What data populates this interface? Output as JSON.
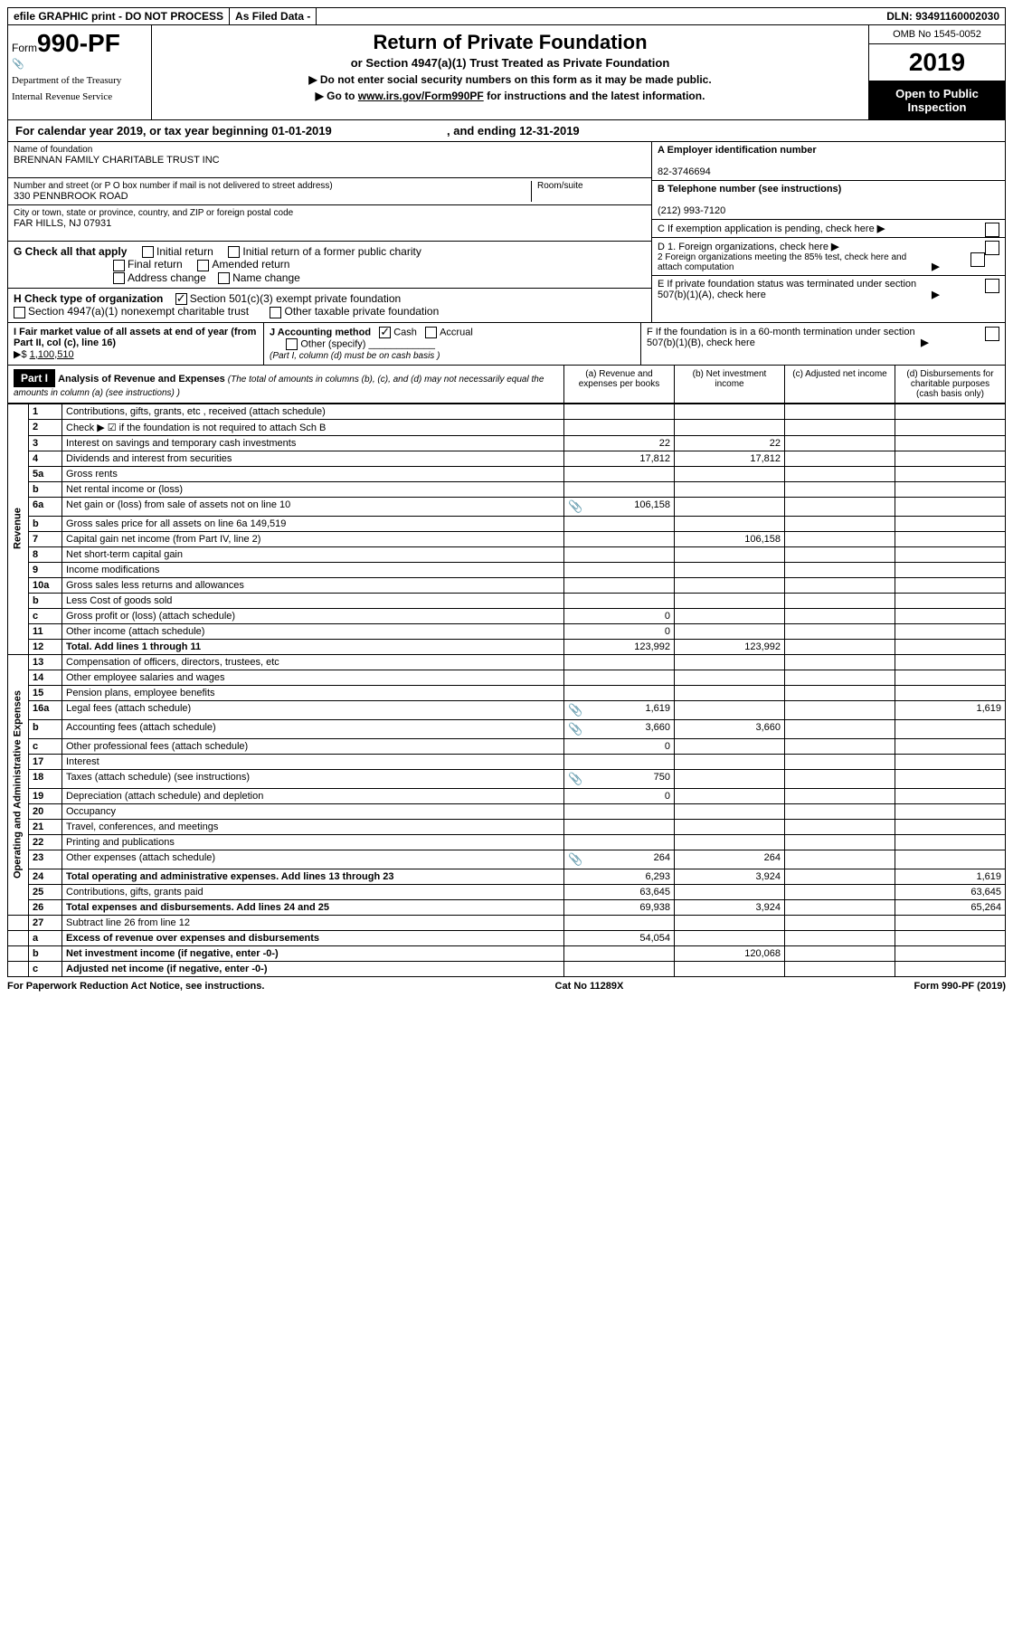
{
  "top": {
    "efile": "efile GRAPHIC print - DO NOT PROCESS",
    "asfiled": "As Filed Data -",
    "dln_label": "DLN:",
    "dln": "93491160002030"
  },
  "header": {
    "form_word": "Form",
    "form_num": "990-PF",
    "dept1": "Department of the Treasury",
    "dept2": "Internal Revenue Service",
    "title1": "Return of Private Foundation",
    "title2": "or Section 4947(a)(1) Trust Treated as Private Foundation",
    "title3a": "▶ Do not enter social security numbers on this form as it may be made public.",
    "title3b_pre": "▶ Go to ",
    "title3b_link": "www.irs.gov/Form990PF",
    "title3b_post": " for instructions and the latest information.",
    "omb": "OMB No 1545-0052",
    "year": "2019",
    "open": "Open to Public Inspection"
  },
  "calyear": {
    "text_a": "For calendar year 2019, or tax year beginning ",
    "begin": "01-01-2019",
    "text_b": ", and ending ",
    "end": "12-31-2019"
  },
  "name_label": "Name of foundation",
  "name": "BRENNAN FAMILY CHARITABLE TRUST INC",
  "addr_label": "Number and street (or P O  box number if mail is not delivered to street address)",
  "addr": "330 PENNBROOK ROAD",
  "room_label": "Room/suite",
  "city_label": "City or town, state or province, country, and ZIP or foreign postal code",
  "city": "FAR HILLS, NJ  07931",
  "a_label": "A Employer identification number",
  "a_val": "82-3746694",
  "b_label": "B Telephone number (see instructions)",
  "b_val": "(212) 993-7120",
  "c_label": "C  If exemption application is pending, check here",
  "d1_label": "D 1. Foreign organizations, check here",
  "d2_label": "2  Foreign organizations meeting the 85% test, check here and attach computation",
  "e_label": "E  If private foundation status was terminated under section 507(b)(1)(A), check here",
  "f_label": "F  If the foundation is in a 60-month termination under section 507(b)(1)(B), check here",
  "g_label": "G Check all that apply",
  "g_opts": [
    "Initial return",
    "Initial return of a former public charity",
    "Final return",
    "Amended return",
    "Address change",
    "Name change"
  ],
  "h_label": "H Check type of organization",
  "h_opts": [
    "Section 501(c)(3) exempt private foundation",
    "Section 4947(a)(1) nonexempt charitable trust",
    "Other taxable private foundation"
  ],
  "i_label": "I Fair market value of all assets at end of year (from Part II, col  (c), line 16)",
  "i_val": "1,100,510",
  "j_label": "J Accounting method",
  "j_opts": [
    "Cash",
    "Accrual",
    "Other (specify)"
  ],
  "j_note": "(Part I, column (d) must be on cash basis )",
  "part1": {
    "label": "Part I",
    "title": "Analysis of Revenue and Expenses",
    "sub": "(The total of amounts in columns (b), (c), and (d) may not necessarily equal the amounts in column (a) (see instructions) )",
    "cols": [
      "(a)   Revenue and expenses per books",
      "(b)   Net investment income",
      "(c)   Adjusted net income",
      "(d)   Disbursements for charitable purposes (cash basis only)"
    ]
  },
  "sections": {
    "revenue": "Revenue",
    "opex": "Operating and Administrative Expenses"
  },
  "rows": [
    {
      "n": "1",
      "d": "Contributions, gifts, grants, etc , received (attach schedule)"
    },
    {
      "n": "2",
      "d": "Check ▶ ☑ if the foundation is not required to attach Sch  B"
    },
    {
      "n": "3",
      "d": "Interest on savings and temporary cash investments",
      "a": "22",
      "b": "22"
    },
    {
      "n": "4",
      "d": "Dividends and interest from securities",
      "a": "17,812",
      "b": "17,812"
    },
    {
      "n": "5a",
      "d": "Gross rents"
    },
    {
      "n": "b",
      "d": "Net rental income or (loss)"
    },
    {
      "n": "6a",
      "d": "Net gain or (loss) from sale of assets not on line 10",
      "icon": true,
      "a": "106,158"
    },
    {
      "n": "b",
      "d": "Gross sales price for all assets on line 6a",
      "inline": "149,519"
    },
    {
      "n": "7",
      "d": "Capital gain net income (from Part IV, line 2)",
      "b": "106,158"
    },
    {
      "n": "8",
      "d": "Net short-term capital gain"
    },
    {
      "n": "9",
      "d": "Income modifications"
    },
    {
      "n": "10a",
      "d": "Gross sales less returns and allowances"
    },
    {
      "n": "b",
      "d": "Less  Cost of goods sold"
    },
    {
      "n": "c",
      "d": "Gross profit or (loss) (attach schedule)",
      "a": "0"
    },
    {
      "n": "11",
      "d": "Other income (attach schedule)",
      "a": "0"
    },
    {
      "n": "12",
      "d": "Total. Add lines 1 through 11",
      "bold": true,
      "a": "123,992",
      "b": "123,992"
    }
  ],
  "exp_rows": [
    {
      "n": "13",
      "d": "Compensation of officers, directors, trustees, etc"
    },
    {
      "n": "14",
      "d": "Other employee salaries and wages"
    },
    {
      "n": "15",
      "d": "Pension plans, employee benefits"
    },
    {
      "n": "16a",
      "d": "Legal fees (attach schedule)",
      "icon": true,
      "a": "1,619",
      "dd": "1,619"
    },
    {
      "n": "b",
      "d": "Accounting fees (attach schedule)",
      "icon": true,
      "a": "3,660",
      "b": "3,660"
    },
    {
      "n": "c",
      "d": "Other professional fees (attach schedule)",
      "a": "0"
    },
    {
      "n": "17",
      "d": "Interest"
    },
    {
      "n": "18",
      "d": "Taxes (attach schedule) (see instructions)",
      "icon": true,
      "a": "750"
    },
    {
      "n": "19",
      "d": "Depreciation (attach schedule) and depletion",
      "a": "0"
    },
    {
      "n": "20",
      "d": "Occupancy"
    },
    {
      "n": "21",
      "d": "Travel, conferences, and meetings"
    },
    {
      "n": "22",
      "d": "Printing and publications"
    },
    {
      "n": "23",
      "d": "Other expenses (attach schedule)",
      "icon": true,
      "a": "264",
      "b": "264"
    },
    {
      "n": "24",
      "d": "Total operating and administrative expenses. Add lines 13 through 23",
      "bold": true,
      "a": "6,293",
      "b": "3,924",
      "dd": "1,619"
    },
    {
      "n": "25",
      "d": "Contributions, gifts, grants paid",
      "a": "63,645",
      "dd": "63,645"
    },
    {
      "n": "26",
      "d": "Total expenses and disbursements. Add lines 24 and 25",
      "bold": true,
      "a": "69,938",
      "b": "3,924",
      "dd": "65,264"
    }
  ],
  "rows27": [
    {
      "n": "27",
      "d": "Subtract line 26 from line 12"
    },
    {
      "n": "a",
      "d": "Excess of revenue over expenses and disbursements",
      "bold": true,
      "a": "54,054"
    },
    {
      "n": "b",
      "d": "Net investment income (if negative, enter -0-)",
      "bold": true,
      "b": "120,068"
    },
    {
      "n": "c",
      "d": "Adjusted net income (if negative, enter -0-)",
      "bold": true
    }
  ],
  "footer": {
    "left": "For Paperwork Reduction Act Notice, see instructions.",
    "mid": "Cat  No  11289X",
    "right": "Form 990-PF (2019)"
  }
}
